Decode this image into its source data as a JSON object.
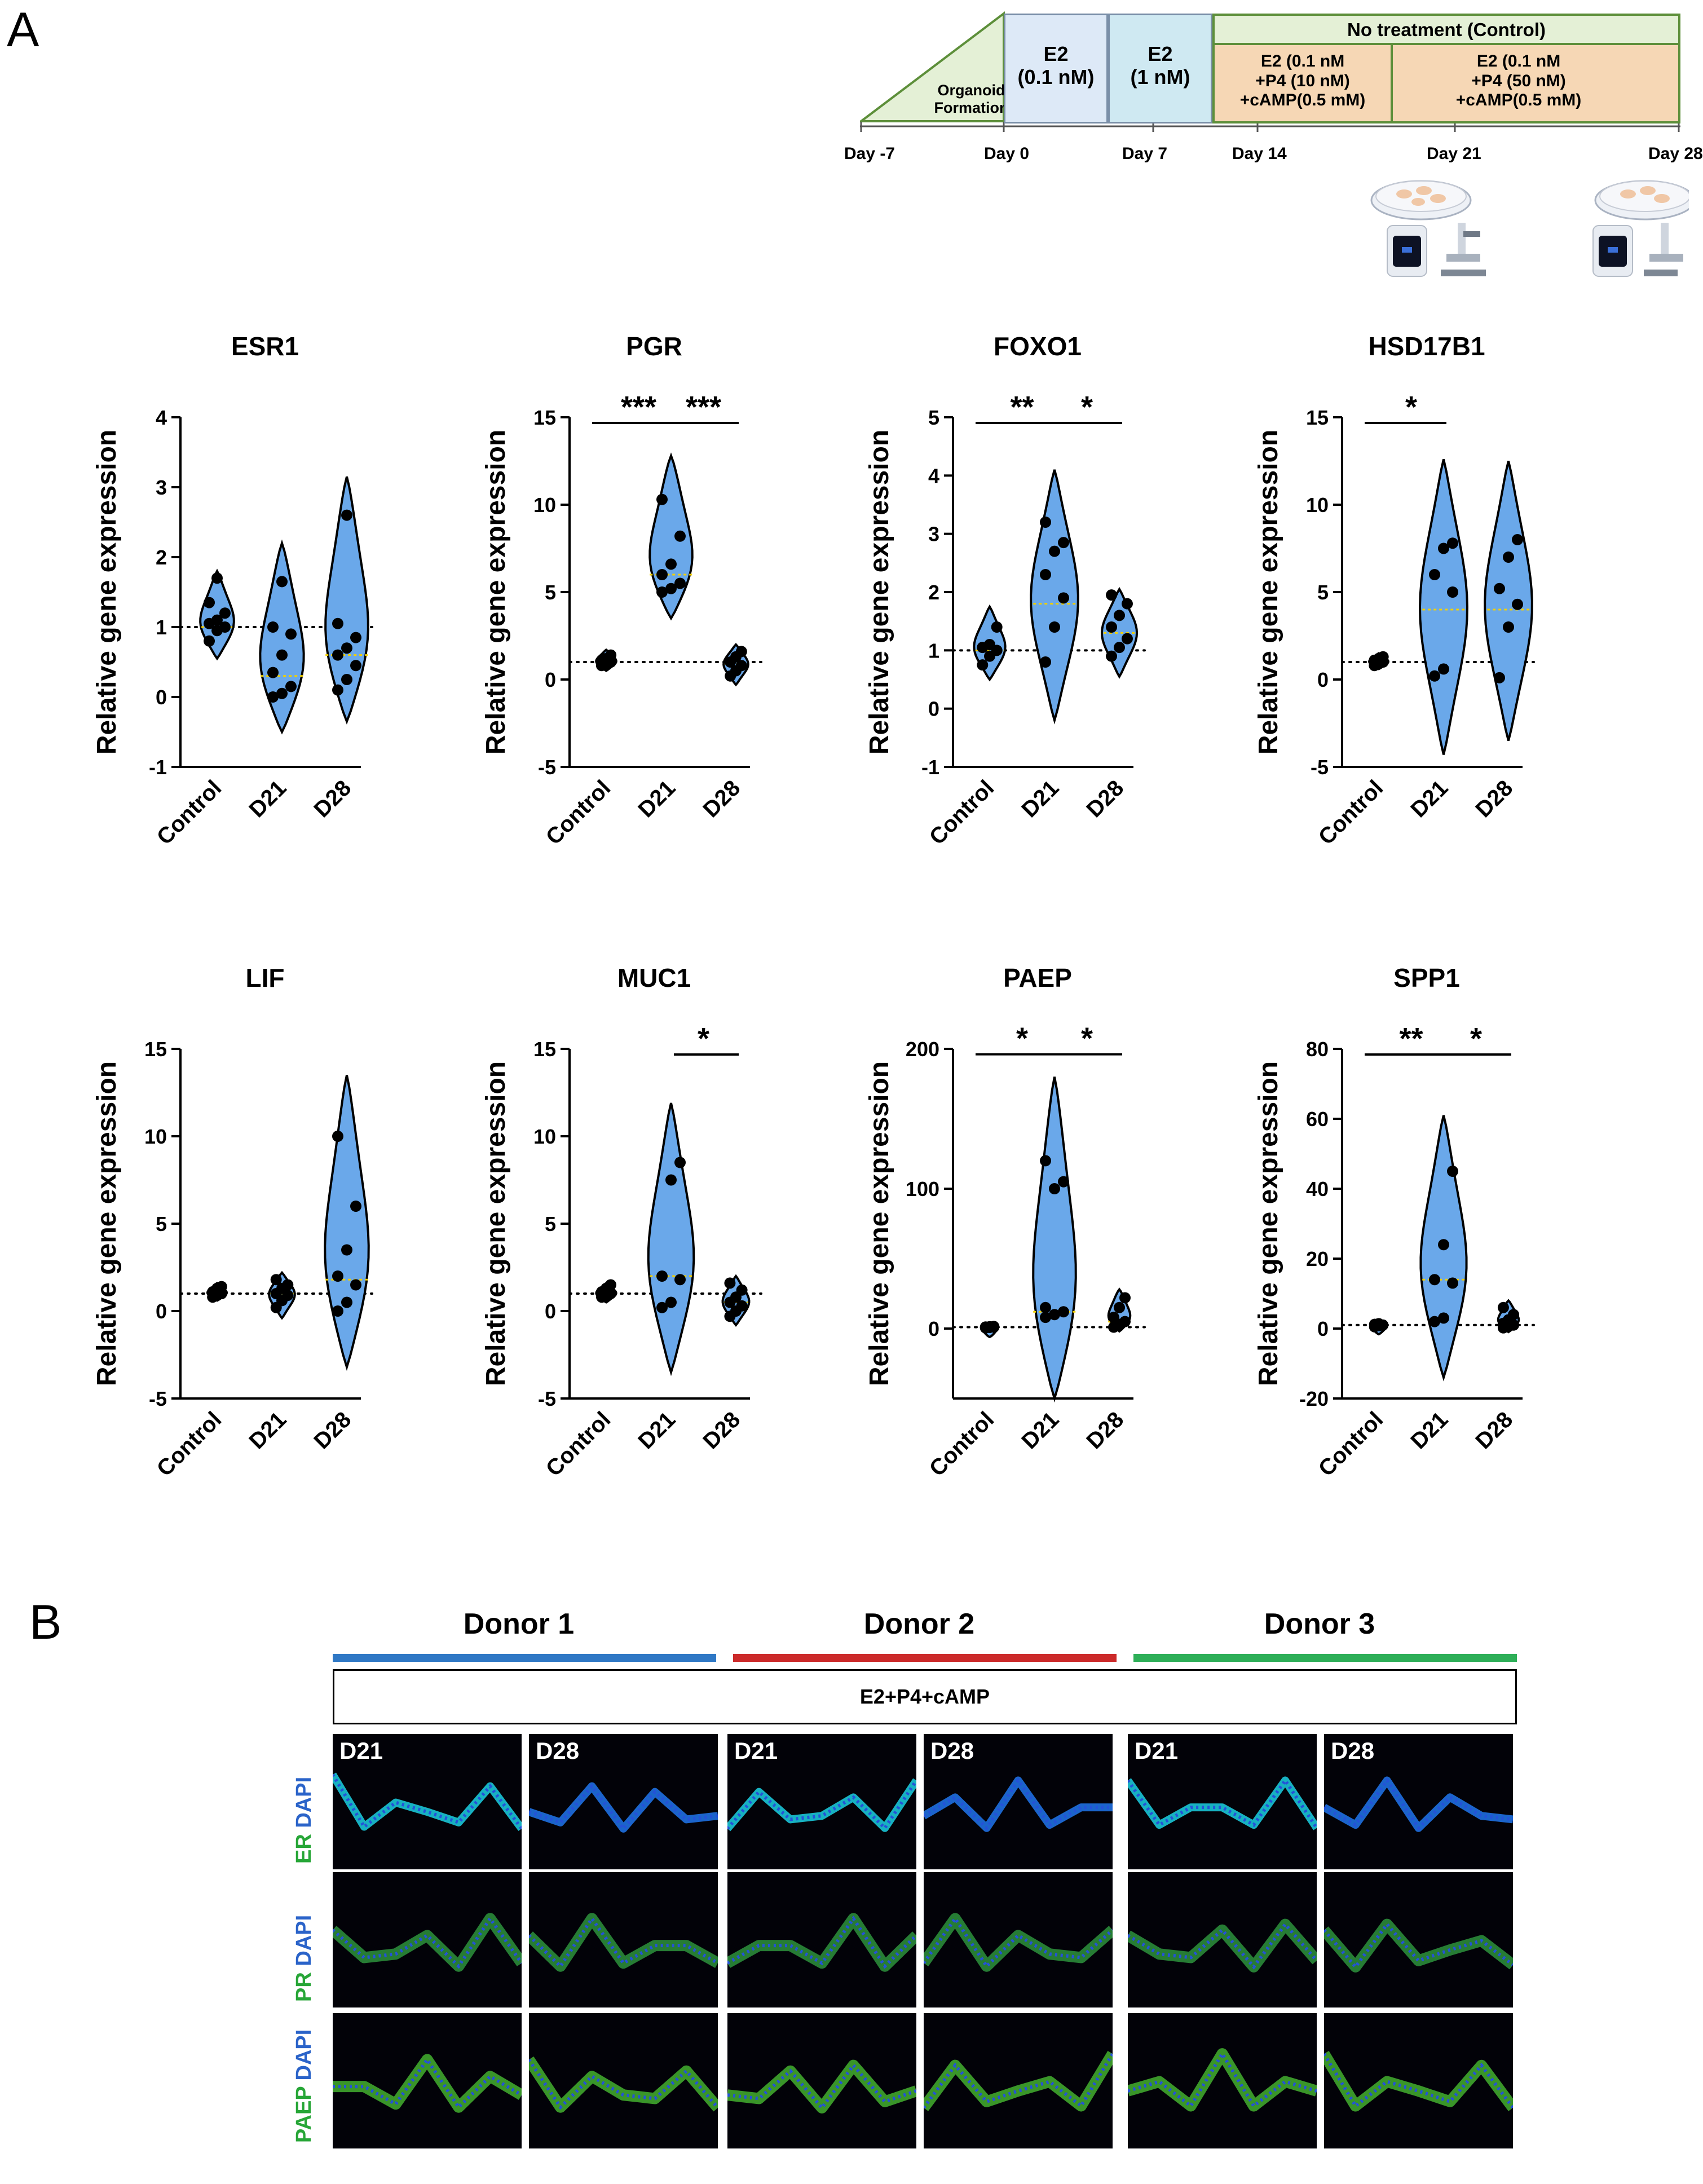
{
  "figure": {
    "panel_a_letter": "A",
    "panel_b_letter": "B"
  },
  "timeline": {
    "organoid_label_line1": "Organoid",
    "organoid_label_line2": "Formation",
    "e2_low_line1": "E2",
    "e2_low_line2": "(0.1 nM)",
    "e2_high_line1": "E2",
    "e2_high_line2": "(1 nM)",
    "control_label": "No treatment (Control)",
    "treat1_line1": "E2 (0.1 nM",
    "treat1_line2": "+P4 (10 nM)",
    "treat1_line3": "+cAMP(0.5 mM)",
    "treat2_line1": "E2 (0.1 nM",
    "treat2_line2": "+P4 (50 nM)",
    "treat2_line3": "+cAMP(0.5 mM)",
    "days": [
      "Day -7",
      "Day 0",
      "Day 7",
      "Day 14",
      "Day 21",
      "Day 28"
    ]
  },
  "chart_data": [
    {
      "type": "violin",
      "title": "ESR1",
      "ylabel": "Relative gene expression",
      "categories": [
        "Control",
        "D21",
        "D28"
      ],
      "ylim": [
        -1,
        4
      ],
      "yticks": [
        -1,
        0,
        1,
        2,
        3,
        4
      ],
      "reference_line": 1,
      "series": [
        {
          "group": "Control",
          "min": 0.55,
          "max": 1.8,
          "median": 1.0,
          "points": [
            0.8,
            0.95,
            1.0,
            1.05,
            1.1,
            1.2,
            1.35,
            1.7
          ]
        },
        {
          "group": "D21",
          "min": -0.5,
          "max": 2.2,
          "median": 0.3,
          "points": [
            0.0,
            0.05,
            0.15,
            0.35,
            0.6,
            0.9,
            1.0,
            1.65
          ]
        },
        {
          "group": "D28",
          "min": -0.35,
          "max": 3.15,
          "median": 0.6,
          "points": [
            0.1,
            0.25,
            0.45,
            0.6,
            0.7,
            0.85,
            1.05,
            2.6
          ]
        }
      ],
      "significance": []
    },
    {
      "type": "violin",
      "title": "PGR",
      "ylabel": "Relative gene expression",
      "categories": [
        "Control",
        "D21",
        "D28"
      ],
      "ylim": [
        -5,
        15
      ],
      "yticks": [
        -5,
        0,
        5,
        10,
        15
      ],
      "reference_line": 1,
      "series": [
        {
          "group": "Control",
          "min": 0.5,
          "max": 1.7,
          "median": 1.0,
          "points": [
            0.8,
            0.9,
            1.0,
            1.1,
            1.2,
            1.4
          ]
        },
        {
          "group": "D21",
          "min": 3.5,
          "max": 12.8,
          "median": 6.0,
          "points": [
            5.0,
            5.2,
            5.5,
            6.0,
            6.6,
            8.2,
            10.3
          ]
        },
        {
          "group": "D28",
          "min": -0.3,
          "max": 2.0,
          "median": 0.9,
          "points": [
            0.2,
            0.5,
            0.8,
            1.0,
            1.3,
            1.6
          ]
        }
      ],
      "significance": [
        {
          "from": 0,
          "to": 1,
          "label": "***"
        },
        {
          "from": 1,
          "to": 2,
          "label": "***"
        }
      ]
    },
    {
      "type": "violin",
      "title": "FOXO1",
      "ylabel": "Relative gene expression",
      "categories": [
        "Control",
        "D21",
        "D28"
      ],
      "ylim": [
        -1,
        5
      ],
      "yticks": [
        -1,
        0,
        1,
        2,
        3,
        4,
        5
      ],
      "reference_line": 1,
      "series": [
        {
          "group": "Control",
          "min": 0.5,
          "max": 1.75,
          "median": 1.0,
          "points": [
            0.75,
            0.9,
            1.0,
            1.05,
            1.1,
            1.4
          ]
        },
        {
          "group": "D21",
          "min": -0.2,
          "max": 4.1,
          "median": 1.8,
          "points": [
            0.8,
            1.4,
            1.9,
            2.3,
            2.7,
            2.85,
            3.2
          ]
        },
        {
          "group": "D28",
          "min": 0.55,
          "max": 2.05,
          "median": 1.3,
          "points": [
            0.9,
            1.05,
            1.2,
            1.4,
            1.6,
            1.8,
            1.95
          ]
        }
      ],
      "significance": [
        {
          "from": 0,
          "to": 1,
          "label": "**"
        },
        {
          "from": 1,
          "to": 2,
          "label": "*"
        }
      ]
    },
    {
      "type": "violin",
      "title": "HSD17B1",
      "ylabel": "Relative gene expression",
      "categories": [
        "Control",
        "D21",
        "D28"
      ],
      "ylim": [
        -5,
        15
      ],
      "yticks": [
        -5,
        0,
        5,
        10,
        15
      ],
      "reference_line": 1,
      "series": [
        {
          "group": "Control",
          "min": 0.6,
          "max": 1.5,
          "median": 1.0,
          "points": [
            0.8,
            0.9,
            1.0,
            1.1,
            1.2,
            1.3
          ]
        },
        {
          "group": "D21",
          "min": -4.3,
          "max": 12.6,
          "median": 4.0,
          "points": [
            0.2,
            0.6,
            5.0,
            6.0,
            7.5,
            7.8
          ]
        },
        {
          "group": "D28",
          "min": -3.5,
          "max": 12.5,
          "median": 4.0,
          "points": [
            0.1,
            3.0,
            4.3,
            5.2,
            7.0,
            8.0
          ]
        }
      ],
      "significance": [
        {
          "from": 0,
          "to": 1,
          "label": "*"
        }
      ]
    },
    {
      "type": "violin",
      "title": "LIF",
      "ylabel": "Relative gene expression",
      "categories": [
        "Control",
        "D21",
        "D28"
      ],
      "ylim": [
        -5,
        15
      ],
      "yticks": [
        -5,
        0,
        5,
        10,
        15
      ],
      "reference_line": 1,
      "series": [
        {
          "group": "Control",
          "min": 0.6,
          "max": 1.6,
          "median": 1.0,
          "points": [
            0.8,
            0.9,
            1.0,
            1.1,
            1.3,
            1.4
          ]
        },
        {
          "group": "D21",
          "min": -0.4,
          "max": 2.2,
          "median": 1.0,
          "points": [
            0.2,
            0.6,
            0.9,
            1.0,
            1.3,
            1.5,
            1.8
          ]
        },
        {
          "group": "D28",
          "min": -3.2,
          "max": 13.5,
          "median": 1.8,
          "points": [
            0.0,
            0.5,
            1.5,
            2.0,
            3.5,
            6.0,
            10.0
          ]
        }
      ],
      "significance": []
    },
    {
      "type": "violin",
      "title": "MUC1",
      "ylabel": "Relative gene expression",
      "categories": [
        "Control",
        "D21",
        "D28"
      ],
      "ylim": [
        -5,
        15
      ],
      "yticks": [
        -5,
        0,
        5,
        10,
        15
      ],
      "reference_line": 1,
      "series": [
        {
          "group": "Control",
          "min": 0.5,
          "max": 1.6,
          "median": 1.0,
          "points": [
            0.8,
            0.9,
            1.0,
            1.1,
            1.3,
            1.5
          ]
        },
        {
          "group": "D21",
          "min": -3.5,
          "max": 11.9,
          "median": 2.0,
          "points": [
            0.2,
            0.5,
            1.8,
            2.0,
            7.5,
            8.5
          ]
        },
        {
          "group": "D28",
          "min": -0.8,
          "max": 2.0,
          "median": 0.5,
          "points": [
            -0.3,
            0.0,
            0.3,
            0.5,
            0.8,
            1.2,
            1.6
          ]
        }
      ],
      "significance": [
        {
          "from": 1,
          "to": 2,
          "label": "*"
        }
      ]
    },
    {
      "type": "violin",
      "title": "PAEP",
      "ylabel": "Relative gene expression",
      "categories": [
        "Control",
        "D21",
        "D28"
      ],
      "ylim": [
        -50,
        200
      ],
      "yticks": [
        0,
        100,
        200
      ],
      "reference_line": 1,
      "series": [
        {
          "group": "Control",
          "min": -1,
          "max": 2,
          "median": 1.0,
          "points": [
            0.5,
            0.8,
            1.0,
            1.1,
            1.3,
            1.5
          ]
        },
        {
          "group": "D21",
          "min": -50,
          "max": 180,
          "median": 12,
          "points": [
            8,
            10,
            12,
            15,
            100,
            105,
            120
          ]
        },
        {
          "group": "D28",
          "min": -2,
          "max": 28,
          "median": 5,
          "points": [
            1,
            3,
            5,
            8,
            15,
            22
          ]
        }
      ],
      "significance": [
        {
          "from": 0,
          "to": 1,
          "label": "*"
        },
        {
          "from": 1,
          "to": 2,
          "label": "*"
        }
      ]
    },
    {
      "type": "violin",
      "title": "SPP1",
      "ylabel": "Relative gene expression",
      "categories": [
        "Control",
        "D21",
        "D28"
      ],
      "ylim": [
        -20,
        80
      ],
      "yticks": [
        -20,
        0,
        20,
        40,
        60,
        80
      ],
      "reference_line": 1,
      "series": [
        {
          "group": "Control",
          "min": 0.3,
          "max": 1.6,
          "median": 1.0,
          "points": [
            0.5,
            0.8,
            1.0,
            1.2,
            1.4
          ]
        },
        {
          "group": "D21",
          "min": -14,
          "max": 61,
          "median": 14,
          "points": [
            2,
            3,
            13,
            14,
            24,
            45
          ]
        },
        {
          "group": "D28",
          "min": -1,
          "max": 8,
          "median": 1.5,
          "points": [
            0.2,
            0.6,
            1.0,
            1.5,
            2.5,
            4.0,
            6.0
          ]
        }
      ],
      "significance": [
        {
          "from": 0,
          "to": 1,
          "label": "**"
        },
        {
          "from": 1,
          "to": 2,
          "label": "*"
        }
      ]
    }
  ],
  "panel_b": {
    "donors": [
      "Donor 1",
      "Donor 2",
      "Donor 3"
    ],
    "treatment": "E2+P4+cAMP",
    "timepoints": [
      "D21",
      "D28",
      "D21",
      "D28",
      "D21",
      "D28"
    ],
    "rows": [
      {
        "marker": "ER",
        "counterstain": "DAPI"
      },
      {
        "marker": "PR",
        "counterstain": "DAPI"
      },
      {
        "marker": "PAEP",
        "counterstain": "DAPI"
      }
    ]
  },
  "colors": {
    "violin_fill": "#6aa8ea",
    "violin_stroke": "#000000",
    "median_line": "#f2d000",
    "donor1_bar": "#2f78c5",
    "donor2_bar": "#cc2a2a",
    "donor3_bar": "#2eaf58",
    "timeline_green": "#5d8f3a",
    "er_pr_paep_label": "#27a637",
    "dapi_label": "#2a63c9"
  }
}
